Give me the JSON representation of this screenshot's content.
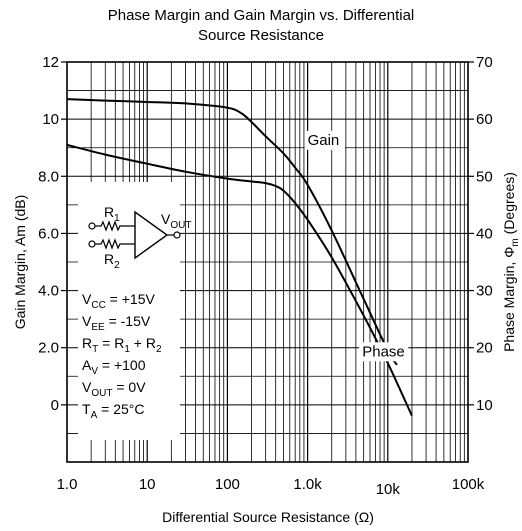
{
  "chart_data": {
    "type": "line",
    "title_line1": "Phase Margin and Gain Margin vs. Differential",
    "title_line2": "Source Resistance",
    "xlabel": "Differential Source Resistance (Ω)",
    "ylabel_left": "Gain Margin, Am (dB)",
    "ylabel_right_prefix": "Phase Margin, Φ",
    "ylabel_right_sub": "m",
    "ylabel_right_suffix": " (Degrees)",
    "x_scale": "log",
    "xlim": [
      1,
      100000
    ],
    "ylim_left": [
      -2,
      12
    ],
    "ylim_right": [
      0,
      70
    ],
    "grid": true,
    "x_ticks": [
      {
        "value": 1,
        "label": "1.0"
      },
      {
        "value": 10,
        "label": "10"
      },
      {
        "value": 100,
        "label": "100"
      },
      {
        "value": 1000,
        "label": "1.0k"
      },
      {
        "value": 10000,
        "label": "10k"
      },
      {
        "value": 100000,
        "label": "100k"
      }
    ],
    "y_left_ticks": [
      {
        "value": 0,
        "label": "0"
      },
      {
        "value": 2,
        "label": "2.0"
      },
      {
        "value": 4,
        "label": "4.0"
      },
      {
        "value": 6,
        "label": "6.0"
      },
      {
        "value": 8,
        "label": "8.0"
      },
      {
        "value": 10,
        "label": "10"
      },
      {
        "value": 12,
        "label": "12"
      }
    ],
    "y_right_ticks": [
      {
        "value": 10,
        "label": "10"
      },
      {
        "value": 20,
        "label": "20"
      },
      {
        "value": 30,
        "label": "30"
      },
      {
        "value": 40,
        "label": "40"
      },
      {
        "value": 50,
        "label": "50"
      },
      {
        "value": 60,
        "label": "60"
      },
      {
        "value": 70,
        "label": "70"
      }
    ],
    "series": [
      {
        "name": "Gain",
        "axis": "left",
        "x": [
          1,
          3,
          10,
          30,
          100,
          150,
          200,
          300,
          500,
          700,
          1000,
          2000,
          5000,
          10000,
          13000
        ],
        "y": [
          10.7,
          10.65,
          10.6,
          10.55,
          10.4,
          10.2,
          9.9,
          9.4,
          8.8,
          8.3,
          7.7,
          6.1,
          3.7,
          1.9,
          1.4
        ]
      },
      {
        "name": "Phase",
        "axis": "right",
        "x": [
          1,
          3,
          10,
          30,
          100,
          200,
          300,
          400,
          500,
          700,
          1000,
          2000,
          5000,
          10000,
          20000
        ],
        "y": [
          55.5,
          53.8,
          52.2,
          50.8,
          49.6,
          49.1,
          48.8,
          48.3,
          47.5,
          45.3,
          42.4,
          35.8,
          25.6,
          17.3,
          8.1
        ]
      }
    ],
    "annotations": [
      {
        "text": "Gain",
        "x": 1000,
        "y_left": 9.1
      },
      {
        "text": "Phase",
        "x": 4800,
        "y_left": 1.7
      }
    ],
    "conditions": [
      {
        "main": "V",
        "sub": "CC",
        "rest": " = +15V"
      },
      {
        "main": "V",
        "sub": "EE",
        "rest": " = -15V"
      },
      {
        "main": "R",
        "sub": "T",
        "rest": " = R",
        "sub2": "1",
        "rest2": " + R",
        "sub3": "2"
      },
      {
        "main": "A",
        "sub": "V",
        "rest": " = +100"
      },
      {
        "main": "V",
        "sub": "OUT",
        "rest": " = 0V"
      },
      {
        "main": "T",
        "sub": "A",
        "rest": " = 25°C"
      }
    ],
    "schematic": {
      "r1": "R",
      "r1_sub": "1",
      "r2": "R",
      "r2_sub": "2",
      "vout": "V",
      "vout_sub": "OUT"
    }
  }
}
